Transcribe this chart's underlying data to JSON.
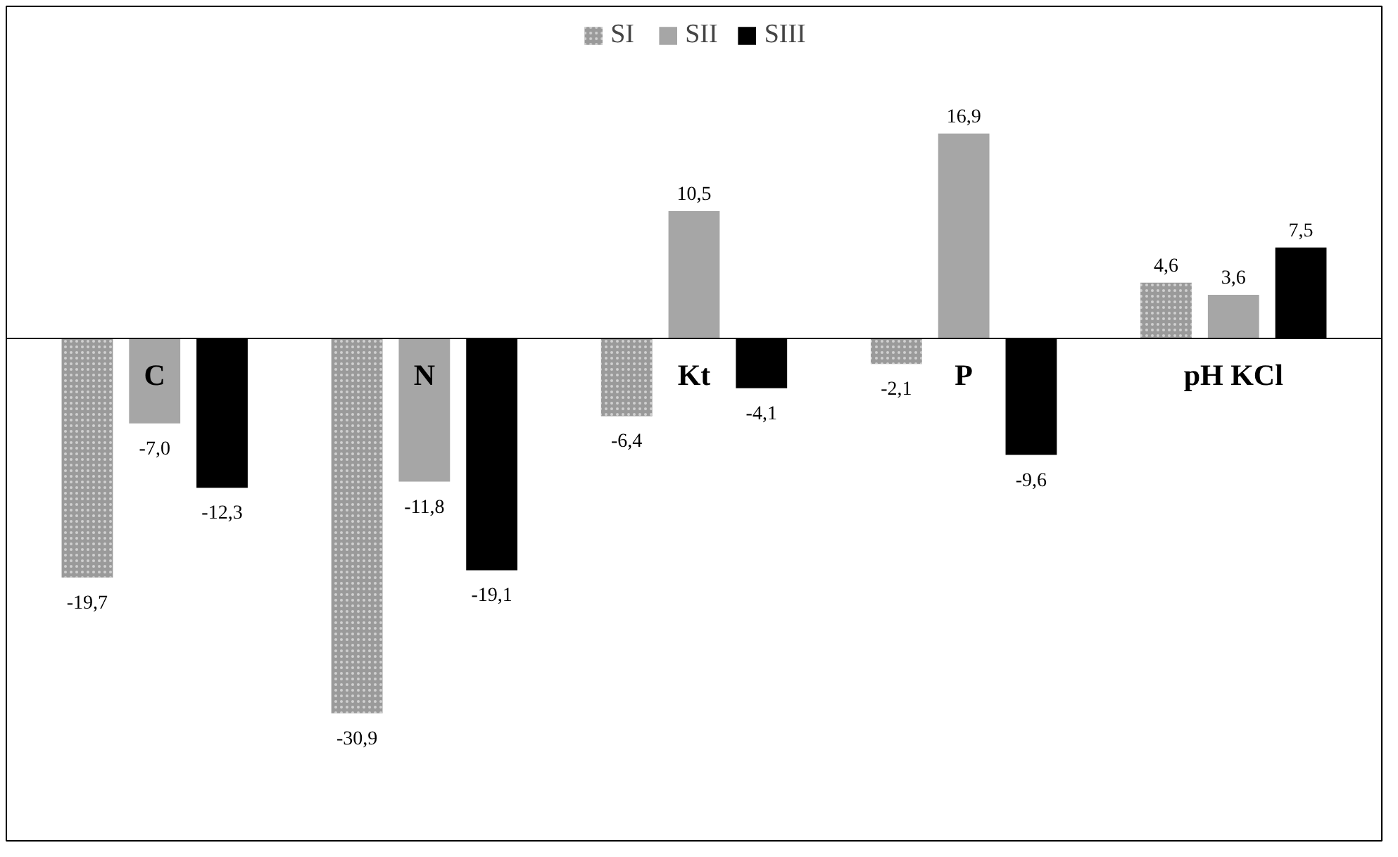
{
  "chart_data": {
    "type": "bar",
    "categories": [
      "C",
      "N",
      "Kt",
      "P",
      "pH KCl"
    ],
    "series": [
      {
        "name": "SI",
        "color": "#9a9a9a",
        "values": [
          -19.7,
          -30.9,
          -6.4,
          -2.1,
          4.6
        ],
        "value_labels": [
          "-19,7",
          "-30,9",
          "-6,4",
          "-2,1",
          "4,6"
        ]
      },
      {
        "name": "SII",
        "color": "#a6a6a6",
        "values": [
          -7.0,
          -11.8,
          10.5,
          16.9,
          3.6
        ],
        "value_labels": [
          "-7,0",
          "-11,8",
          "10,5",
          "16,9",
          "3,6"
        ]
      },
      {
        "name": "SIII",
        "color": "#000000",
        "values": [
          -12.3,
          -19.1,
          -4.1,
          -9.6,
          7.5
        ],
        "value_labels": [
          "-12,3",
          "-19,1",
          "-4,1",
          "-9,6",
          "7,5"
        ]
      }
    ],
    "legend": "top",
    "grid": false
  }
}
